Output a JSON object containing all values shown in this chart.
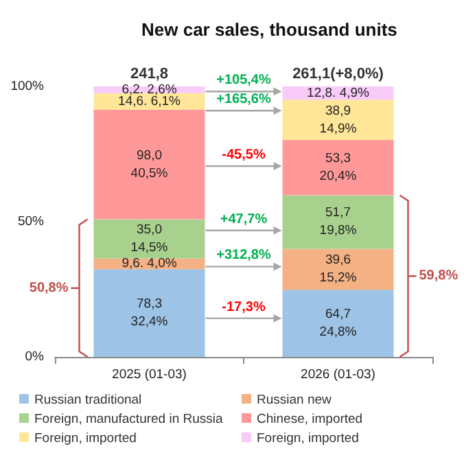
{
  "chart_data": {
    "type": "bar",
    "title": "New car sales, thousand units",
    "stacked": true,
    "categories": [
      "2025 (01-03)",
      "2026 (01-03)"
    ],
    "ylim": [
      0,
      100
    ],
    "yticks": [
      {
        "value": 0,
        "label": "0%"
      },
      {
        "value": 50,
        "label": "50%"
      },
      {
        "value": 100,
        "label": "100%"
      }
    ],
    "grid": false,
    "legend": "bottom",
    "series": [
      {
        "name": "Russian traditional",
        "color": "#9dc3e6",
        "values": [
          32.4,
          24.8
        ],
        "value_labels": [
          "78,3\n32,4%",
          "64,7\n24,8%"
        ]
      },
      {
        "name": "Russian new",
        "color": "#f4b183",
        "values": [
          4.0,
          15.2
        ],
        "value_labels": [
          "9,6. 4,0%",
          "39,6\n15,2%"
        ]
      },
      {
        "name": "Foreign, manufactured in Russia",
        "color": "#a9d18e",
        "values": [
          14.5,
          19.8
        ],
        "value_labels": [
          "35,0\n14,5%",
          "51,7\n19,8%"
        ]
      },
      {
        "name": "Chinese, imported",
        "color": "#ff9999",
        "values": [
          40.5,
          20.4
        ],
        "value_labels": [
          "98,0\n40,5%",
          "53,3\n20,4%"
        ]
      },
      {
        "name": "Foreign, imported",
        "color": "#ffe699",
        "values": [
          6.1,
          14.9
        ],
        "value_labels": [
          "14,6. 6,1%",
          "38,9\n14,9%"
        ]
      },
      {
        "name": "Foreign, imported",
        "color": "#f8cbf8",
        "values": [
          2.6,
          4.9
        ],
        "value_labels": [
          "6,2. 2,6%",
          "12,8. 4,9%"
        ]
      }
    ],
    "annotations": [
      {
        "text": "241,8",
        "x": "2025 (01-03)",
        "y": 100
      },
      {
        "text": "261,1(+8,0%)",
        "x": "2026 (01-03)",
        "y": 100
      },
      "-17,3%",
      "+312,8%",
      "+47,7%",
      "-45,5%",
      "+165,6%",
      "+105,4%",
      "50,8%",
      "59,8%"
    ]
  }
}
